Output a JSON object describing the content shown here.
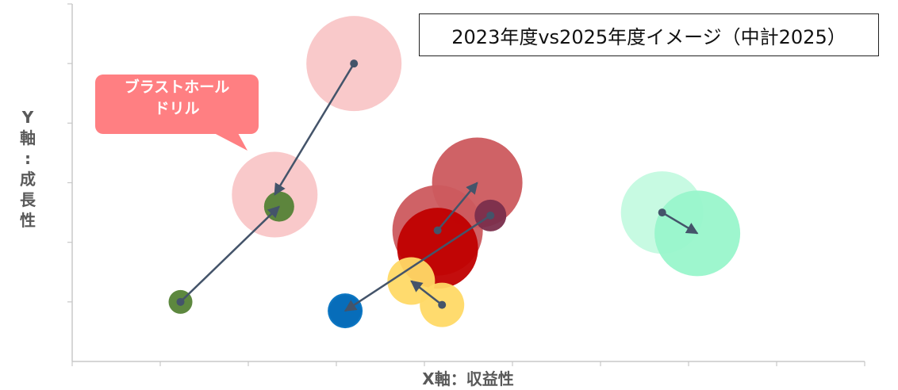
{
  "chart_data": {
    "type": "scatter",
    "title": "2023年度vs2025年度イメージ（中計2025）",
    "xlabel": "X軸：収益性",
    "ylabel": "Y軸：成長性",
    "xlim": [
      0,
      9
    ],
    "ylim": [
      0,
      6
    ],
    "x_ticks": [
      0,
      1,
      2,
      3,
      4,
      5,
      6,
      7,
      8,
      9
    ],
    "y_ticks": [
      1,
      2,
      3,
      4,
      5,
      6
    ],
    "grid": false,
    "annotations": [
      {
        "text_lines": [
          "ブラストホール",
          "ドリル"
        ],
        "points_to": "pink"
      }
    ],
    "bubbles": [
      {
        "id": "pink",
        "color": "#f9c6c7",
        "year2023": {
          "x": 3.2,
          "y": 5.0,
          "size": 60
        },
        "year2025": {
          "x": 2.3,
          "y": 2.8,
          "size": 54
        }
      },
      {
        "id": "green",
        "color": "#548235",
        "year2023": {
          "x": 1.23,
          "y": 1.0,
          "size": 15
        },
        "year2025": {
          "x": 2.35,
          "y": 2.6,
          "size": 19
        }
      },
      {
        "id": "darkred",
        "color": "#cc5a5e",
        "year2023": {
          "x": 4.15,
          "y": 2.2,
          "size": 57
        },
        "year2025": {
          "x": 4.6,
          "y": 3.0,
          "size": 57
        }
      },
      {
        "id": "purple",
        "color": "#7a2e4c",
        "year2023": {
          "x": 4.75,
          "y": 2.45,
          "size": 20
        },
        "year2025": {
          "x": 3.1,
          "y": 0.85,
          "size": 20
        }
      },
      {
        "id": "red",
        "color": "#c00000",
        "year2023": {
          "x": 4.15,
          "y": 1.9,
          "size": 51
        },
        "year2025": {
          "x": 4.15,
          "y": 1.9,
          "size": 51
        }
      },
      {
        "id": "yellow",
        "color": "#ffd966",
        "year2023": {
          "x": 4.2,
          "y": 0.95,
          "size": 28
        },
        "year2025": {
          "x": 3.85,
          "y": 1.35,
          "size": 30
        }
      },
      {
        "id": "blue",
        "color": "#0070c0",
        "year2023": {
          "x": 3.1,
          "y": 0.85,
          "size": 22
        },
        "year2025": {
          "x": 3.1,
          "y": 0.85,
          "size": 22
        }
      },
      {
        "id": "mint",
        "color": "#99f5cb",
        "year2023": {
          "x": 6.7,
          "y": 2.5,
          "size": 52
        },
        "year2025": {
          "x": 7.1,
          "y": 2.15,
          "size": 54
        }
      }
    ]
  },
  "colors": {
    "arrow": "#44546a",
    "axis": "#c8c8c8",
    "callout": "#ff7f82"
  }
}
